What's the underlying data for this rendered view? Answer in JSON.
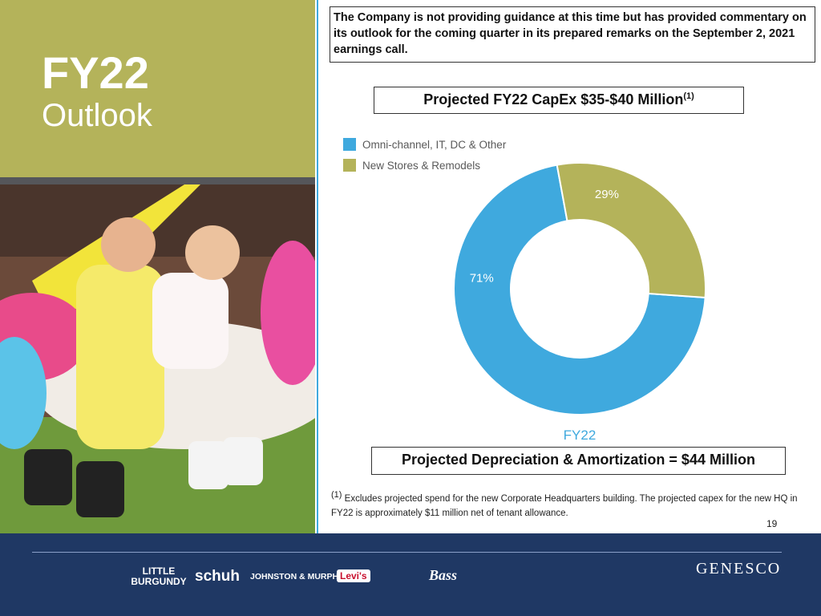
{
  "header": {
    "title": "FY22",
    "subtitle": "Outlook"
  },
  "note": "The Company is not providing guidance at this time but has provided commentary on its outlook for the coming quarter in its prepared remarks on the September 2, 2021 earnings call.",
  "chart_data": {
    "type": "donut",
    "title": "Projected FY22 CapEx $35-$40 Million",
    "title_note": "(1)",
    "categories": [
      "Omni-channel, IT, DC & Other",
      "New Stores & Remodels"
    ],
    "values": [
      71,
      29
    ],
    "value_labels": [
      "71%",
      "29%"
    ],
    "colors": [
      "#3fa9de",
      "#b4b35a"
    ],
    "x_label": "FY22",
    "legend": "top-left"
  },
  "depreciation": "Projected Depreciation & Amortization = $44 Million",
  "footnote_marker": "(1)",
  "footnote": "Excludes projected spend for the new Corporate Headquarters building.  The projected capex for the new HQ in FY22 is approximately $11 million net of tenant allowance.",
  "page_number": "19",
  "brands": [
    "LITTLE BURGUNDY",
    "schuh",
    "JOHNSTON & MURPHY",
    "Levi's",
    "Bass",
    "GENESCO"
  ]
}
